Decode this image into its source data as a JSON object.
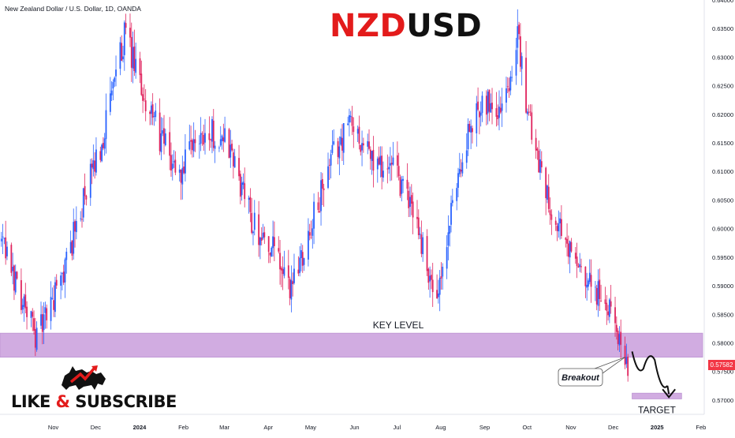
{
  "header": {
    "instrument": "New Zealand Dollar / U.S. Dollar, 1D, OANDA",
    "symbol_part1": "NZD",
    "symbol_part2": "USD"
  },
  "branding": {
    "cta_like": "LIKE",
    "cta_amp": "&",
    "cta_subscribe": "SUBSCRIBE",
    "logo_icon": "bull-bear-icon"
  },
  "colors": {
    "bull": "#2962ff",
    "bear": "#e0245e",
    "zone": "#cfa8e0",
    "zone_border": "#b98fd0",
    "accent": "#e31b1b",
    "price_badge": "#f23645"
  },
  "current_price_badge": "0.57582",
  "chart_data": {
    "type": "candlestick",
    "title": "NZDUSD",
    "ylim": [
      0.5675,
      0.64
    ],
    "y_ticks": [
      "0.64000",
      "0.63500",
      "0.63000",
      "0.62500",
      "0.62000",
      "0.61500",
      "0.61000",
      "0.60500",
      "0.60000",
      "0.59500",
      "0.59000",
      "0.58500",
      "0.58000",
      "0.57500",
      "0.57000"
    ],
    "x_ticks": [
      "Nov",
      "Dec",
      "2024",
      "Feb",
      "Mar",
      "Apr",
      "May",
      "Jun",
      "Jul",
      "Aug",
      "Sep",
      "Oct",
      "Nov",
      "Dec",
      "2025",
      "Feb"
    ],
    "bold_x_ticks": [
      "2024",
      "2025"
    ],
    "series": [
      {
        "date": "2023-10-01",
        "close": 0.598
      },
      {
        "date": "2023-10-27",
        "close": 0.581
      },
      {
        "date": "2023-11-12",
        "close": 0.59
      },
      {
        "date": "2023-11-28",
        "close": 0.604
      },
      {
        "date": "2023-12-12",
        "close": 0.615
      },
      {
        "date": "2023-12-28",
        "close": 0.634
      },
      {
        "date": "2024-01-08",
        "close": 0.625
      },
      {
        "date": "2024-01-24",
        "close": 0.615
      },
      {
        "date": "2024-02-05",
        "close": 0.609
      },
      {
        "date": "2024-02-20",
        "close": 0.617
      },
      {
        "date": "2024-03-08",
        "close": 0.616
      },
      {
        "date": "2024-03-28",
        "close": 0.601
      },
      {
        "date": "2024-04-12",
        "close": 0.596
      },
      {
        "date": "2024-04-22",
        "close": 0.589
      },
      {
        "date": "2024-05-10",
        "close": 0.602
      },
      {
        "date": "2024-05-24",
        "close": 0.613
      },
      {
        "date": "2024-06-05",
        "close": 0.619
      },
      {
        "date": "2024-06-20",
        "close": 0.612
      },
      {
        "date": "2024-07-05",
        "close": 0.61
      },
      {
        "date": "2024-07-20",
        "close": 0.603
      },
      {
        "date": "2024-08-05",
        "close": 0.586
      },
      {
        "date": "2024-08-20",
        "close": 0.61
      },
      {
        "date": "2024-09-05",
        "close": 0.623
      },
      {
        "date": "2024-09-20",
        "close": 0.621
      },
      {
        "date": "2024-10-01",
        "close": 0.633
      },
      {
        "date": "2024-10-10",
        "close": 0.618
      },
      {
        "date": "2024-10-28",
        "close": 0.601
      },
      {
        "date": "2024-11-18",
        "close": 0.59
      },
      {
        "date": "2024-12-01",
        "close": 0.588
      },
      {
        "date": "2024-12-08",
        "close": 0.584
      },
      {
        "date": "2024-12-18",
        "close": 0.576
      }
    ],
    "zones": [
      {
        "label": "KEY LEVEL",
        "from": 0.5775,
        "to": 0.5817,
        "start": "2023-10-01",
        "end": "2025-02-10"
      },
      {
        "label": "TARGET",
        "from": 0.5702,
        "to": 0.5712,
        "start": "2024-12-21",
        "end": "2025-01-25"
      }
    ],
    "annotations": [
      {
        "text": "Breakout",
        "date": "2024-12-04",
        "price": 0.574,
        "points_to_date": "2024-12-16",
        "points_to_price": 0.5775
      }
    ],
    "projection": [
      {
        "date": "2024-12-21",
        "price": 0.5785
      },
      {
        "date": "2024-12-29",
        "price": 0.5755
      },
      {
        "date": "2025-01-06",
        "price": 0.577
      },
      {
        "date": "2025-01-15",
        "price": 0.5725
      }
    ],
    "projection_target": {
      "date": "2025-01-16",
      "price": 0.5705
    }
  }
}
